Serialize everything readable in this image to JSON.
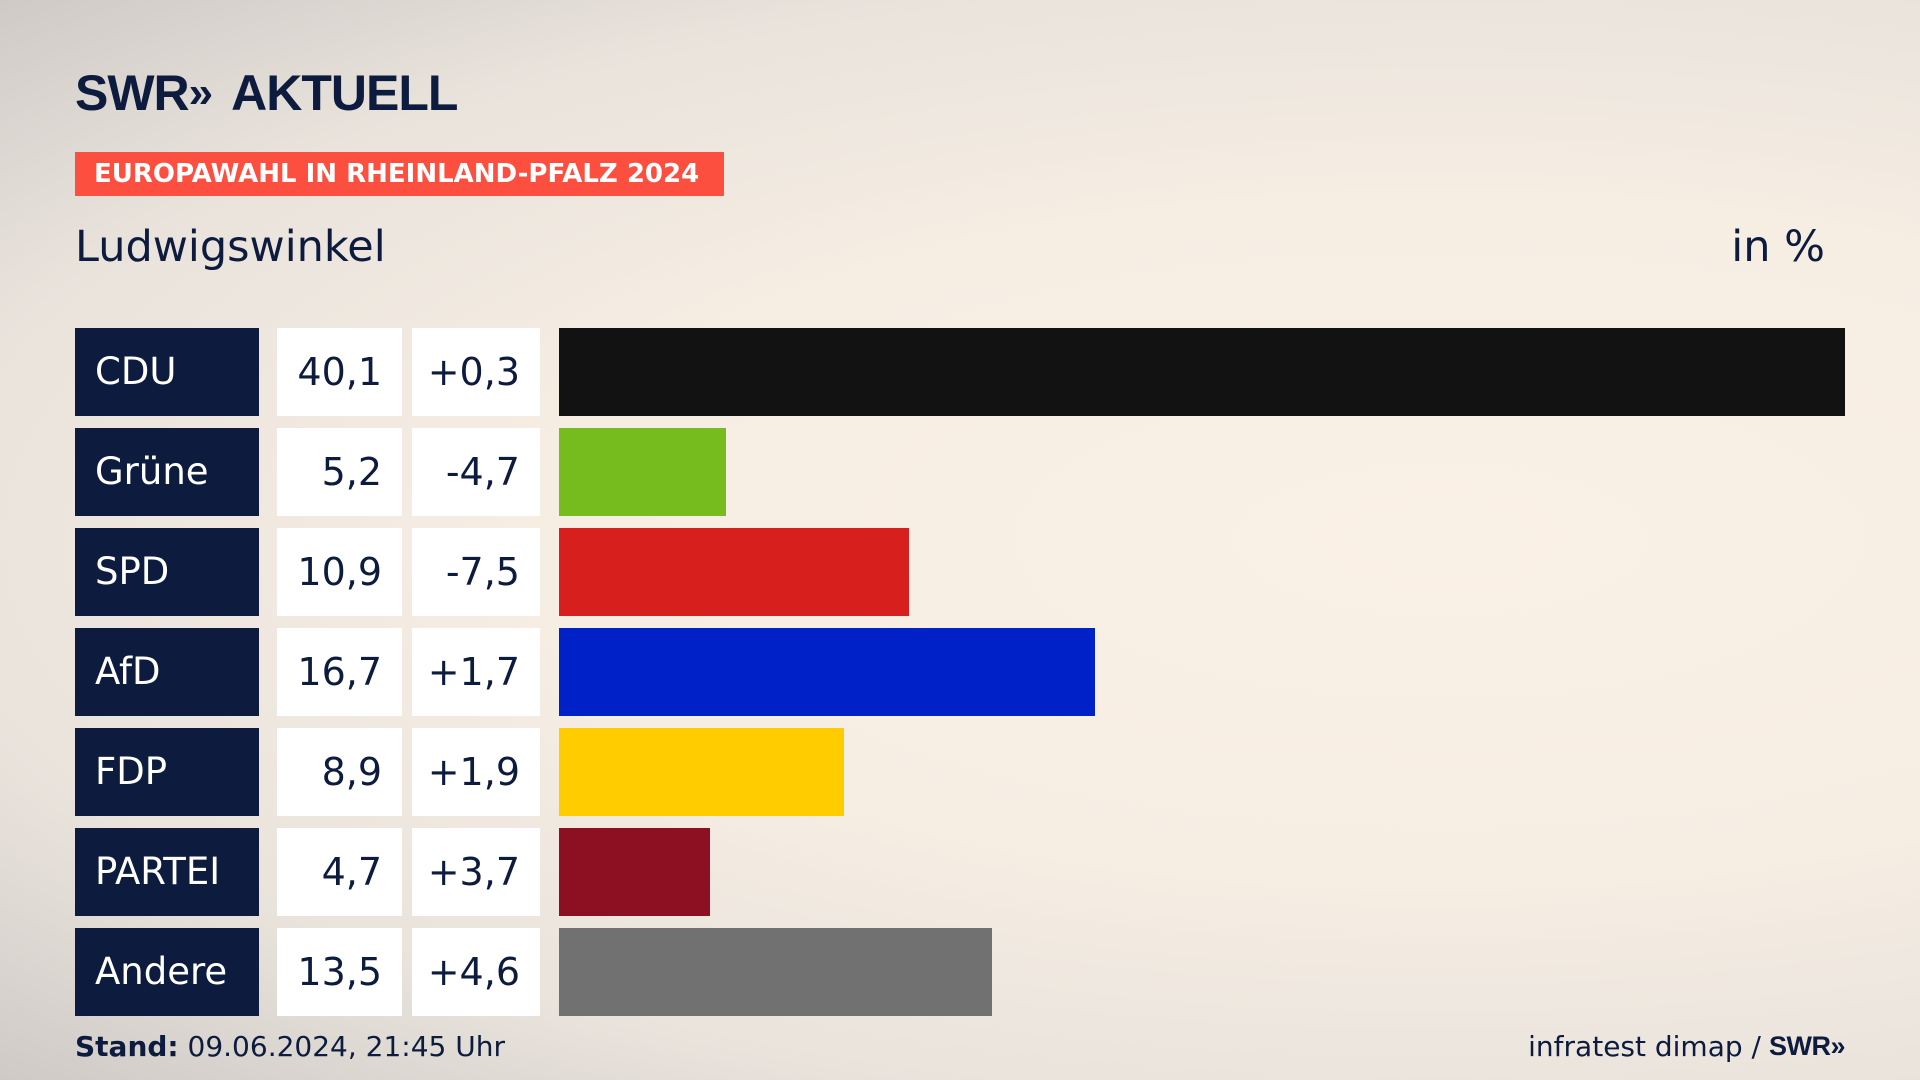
{
  "brand": {
    "swr": "SWR",
    "chevrons": "»",
    "aktuell": "AKTUELL"
  },
  "tag": "EUROPAWAHL IN RHEINLAND-PFALZ 2024",
  "location": "Ludwigswinkel",
  "unit": "in %",
  "footer": {
    "stand_label": "Stand:",
    "stand_value": "09.06.2024, 21:45 Uhr",
    "source": "infratest dimap /",
    "source_logo": "SWR»"
  },
  "chart_data": {
    "type": "bar",
    "orientation": "horizontal",
    "categories": [
      "CDU",
      "Grüne",
      "SPD",
      "AfD",
      "FDP",
      "PARTEI",
      "Andere"
    ],
    "values": [
      40.1,
      5.2,
      10.9,
      16.7,
      8.9,
      4.7,
      13.5
    ],
    "value_labels": [
      "40,1",
      "5,2",
      "10,9",
      "16,7",
      "8,9",
      "4,7",
      "13,5"
    ],
    "diffs": [
      0.3,
      -4.7,
      -7.5,
      1.7,
      1.9,
      3.7,
      4.6
    ],
    "diff_labels": [
      "+0,3",
      "-4,7",
      "-7,5",
      "+1,7",
      "+1,9",
      "+3,7",
      "+4,6"
    ],
    "colors": [
      "#121212",
      "#77bc1f",
      "#d71f1d",
      "#0021c8",
      "#ffcc00",
      "#8c0f22",
      "#717172"
    ],
    "xlim": [
      0,
      40.1
    ]
  }
}
